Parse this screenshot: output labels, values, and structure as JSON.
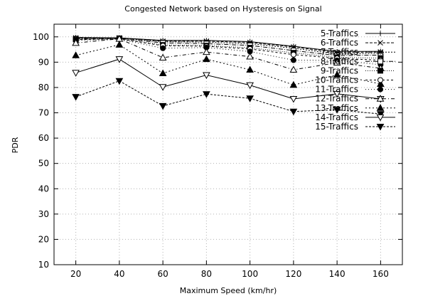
{
  "chart_data": {
    "type": "line",
    "title": "Congested Network based on Hysteresis on Signal",
    "xlabel": "Maximum Speed (km/hr)",
    "ylabel": "PDR",
    "x": [
      20,
      40,
      60,
      80,
      100,
      120,
      140,
      160
    ],
    "xlim": [
      10,
      170
    ],
    "ylim": [
      10,
      105
    ],
    "xticks": [
      "20",
      "40",
      "60",
      "80",
      "100",
      "120",
      "140",
      "160"
    ],
    "yticks": [
      "10",
      "20",
      "30",
      "40",
      "50",
      "60",
      "70",
      "80",
      "90",
      "100"
    ],
    "grid": true,
    "legend_position": "top-right",
    "series": [
      {
        "name": "5-Traffics",
        "values": [
          99.8,
          99.6,
          98.6,
          98.6,
          98.1,
          96.3,
          94.2,
          94.3
        ]
      },
      {
        "name": "6-Traffics",
        "values": [
          99.6,
          99.6,
          98.3,
          98.3,
          97.8,
          96.0,
          93.8,
          94.0
        ]
      },
      {
        "name": "7-Traffics",
        "values": [
          99.4,
          99.5,
          98.1,
          97.9,
          97.3,
          95.5,
          93.2,
          93.5
        ]
      },
      {
        "name": "8-Traffics",
        "values": [
          99.2,
          99.4,
          97.6,
          97.3,
          96.6,
          94.6,
          92.6,
          92.8
        ]
      },
      {
        "name": "9-Traffics",
        "values": [
          99.0,
          99.3,
          96.8,
          96.5,
          95.7,
          93.7,
          91.9,
          91.6
        ]
      },
      {
        "name": "10-Traffics",
        "values": [
          98.9,
          99.2,
          96.5,
          96.3,
          95.2,
          93.0,
          91.5,
          90.8
        ]
      },
      {
        "name": "11-Traffics",
        "values": [
          98.6,
          99.1,
          95.5,
          95.8,
          94.2,
          90.8,
          90.7,
          89.0
        ]
      },
      {
        "name": "12-Traffics",
        "values": [
          97.6,
          99.2,
          91.8,
          94.0,
          92.2,
          87.0,
          89.8,
          87.6
        ]
      },
      {
        "name": "13-Traffics",
        "values": [
          92.7,
          96.9,
          85.6,
          91.2,
          87.0,
          81.0,
          85.0,
          81.4
        ]
      },
      {
        "name": "14-Traffics",
        "values": [
          85.8,
          91.2,
          80.2,
          84.9,
          80.9,
          75.5,
          77.5,
          75.5
        ]
      },
      {
        "name": "15-Traffics",
        "values": [
          76.3,
          82.6,
          72.7,
          77.4,
          75.7,
          70.5,
          71.2,
          69.5
        ]
      }
    ]
  }
}
